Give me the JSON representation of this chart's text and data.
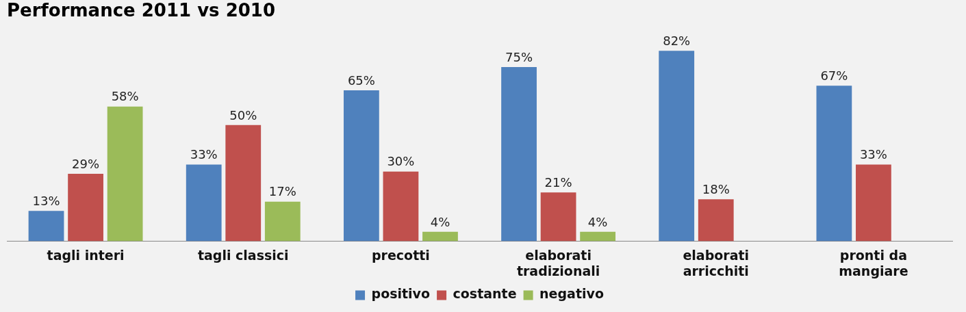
{
  "chart_data": {
    "type": "bar",
    "title": "Performance 2011 vs 2010",
    "categories": [
      "tagli interi",
      "tagli classici",
      "precotti",
      "elaborati tradizionali",
      "elaborati arricchiti",
      "pronti da mangiare"
    ],
    "series": [
      {
        "name": "positivo",
        "color": "#4f81bd",
        "values": [
          13,
          33,
          65,
          75,
          82,
          67
        ],
        "value_labels": [
          "13%",
          "33%",
          "65%",
          "75%",
          "82%",
          "67%"
        ]
      },
      {
        "name": "costante",
        "color": "#c0504d",
        "values": [
          29,
          50,
          30,
          21,
          18,
          33
        ],
        "value_labels": [
          "29%",
          "50%",
          "30%",
          "21%",
          "18%",
          "33%"
        ]
      },
      {
        "name": "negativo",
        "color": "#9bbb59",
        "values": [
          58,
          17,
          4,
          4,
          null,
          null
        ],
        "value_labels": [
          "58%",
          "17%",
          "4%",
          "4%",
          null,
          null
        ]
      }
    ],
    "grid": false,
    "legend": "bottom"
  }
}
